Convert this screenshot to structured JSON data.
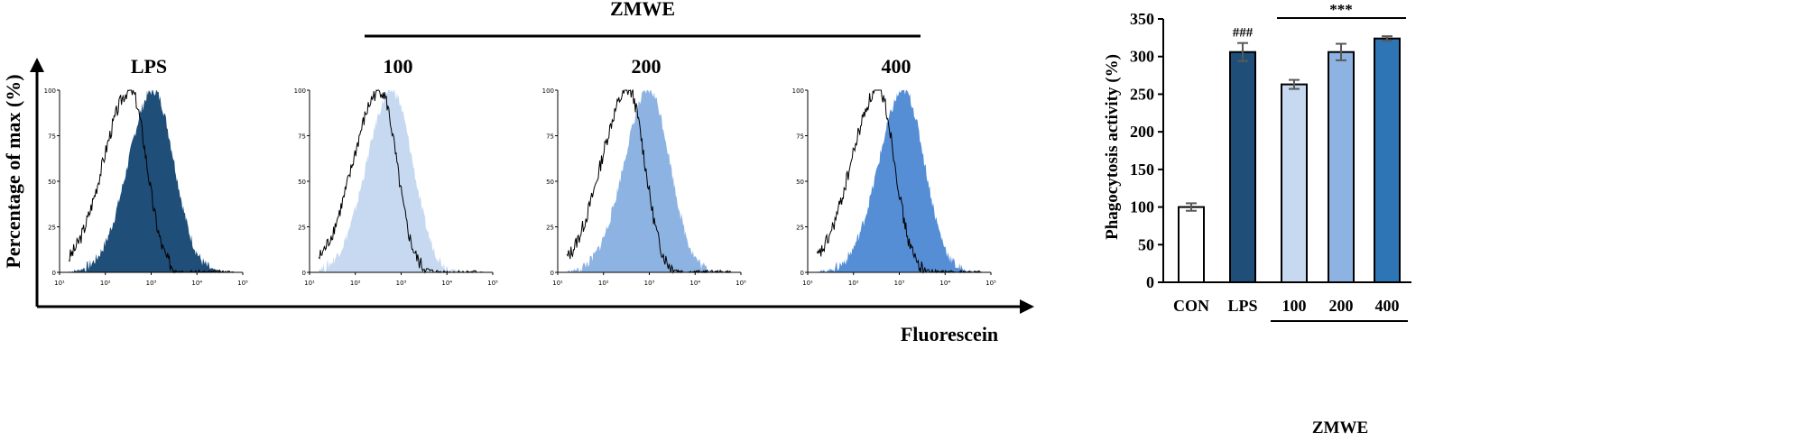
{
  "figure": {
    "group_label": "ZMWE",
    "y_axis_label": "Percentage of max (%)",
    "x_axis_label": "Fluorescein"
  },
  "chart_data": [
    {
      "type": "area",
      "panels": [
        {
          "label": "LPS",
          "fill_color": "#1f4e79",
          "control_peak_log": 2.55,
          "sample_peak_log": 3.05
        },
        {
          "label": "100",
          "fill_color": "#c6d9f1",
          "control_peak_log": 2.55,
          "sample_peak_log": 2.8
        },
        {
          "label": "200",
          "fill_color": "#8db3e2",
          "control_peak_log": 2.55,
          "sample_peak_log": 3.0
        },
        {
          "label": "400",
          "fill_color": "#558ed5",
          "control_peak_log": 2.55,
          "sample_peak_log": 3.1
        }
      ],
      "x_ticks": [
        "10¹",
        "10²",
        "10³",
        "10⁴",
        "10⁵"
      ],
      "x_range_log": [
        1,
        5
      ],
      "y_ticks": [
        "0",
        "25",
        "50",
        "75",
        "100"
      ],
      "ylim": [
        0,
        100
      ]
    },
    {
      "type": "bar",
      "categories": [
        "CON",
        "LPS",
        "100",
        "200",
        "400"
      ],
      "values": [
        100,
        306,
        263,
        306,
        324
      ],
      "errors": [
        5,
        12,
        6,
        11,
        3
      ],
      "colors": [
        "#ffffff",
        "#1f4e79",
        "#c6d9f1",
        "#8db3e2",
        "#2e75b6"
      ],
      "annotations": [
        "",
        "###",
        "",
        "",
        ""
      ],
      "bracket_label": "***",
      "ylabel": "Phagocytosis activity (%)",
      "ylim": [
        0,
        350
      ],
      "y_ticks": [
        0,
        50,
        100,
        150,
        200,
        250,
        300,
        350
      ],
      "group_label": "ZMWE"
    }
  ]
}
